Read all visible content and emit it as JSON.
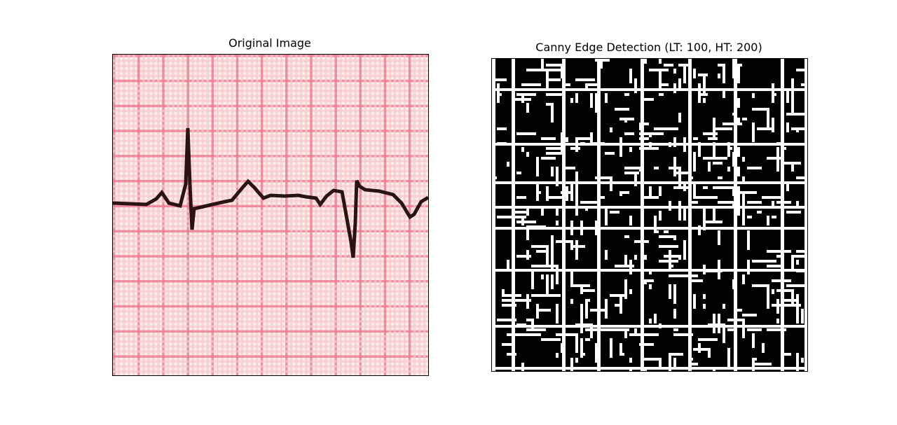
{
  "figure": {
    "left_panel": {
      "title": "Original Image"
    },
    "right_panel": {
      "title": "Canny Edge Detection (LT: 100, HT: 200)"
    }
  },
  "colors": {
    "paper": "#fdf1e6",
    "grid_light": "#f6c9cf",
    "grid_dark": "#ee7d95",
    "trace": "#2a1410",
    "edge_background": "#000000",
    "edge_lines": "#ffffff"
  }
}
